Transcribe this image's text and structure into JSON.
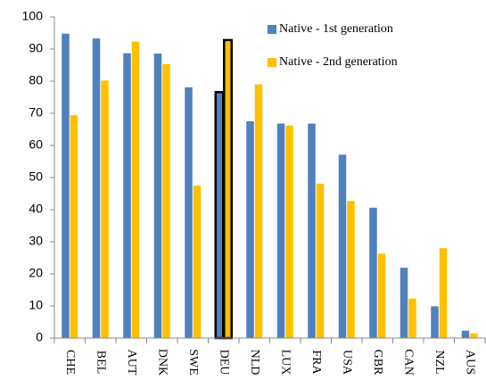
{
  "chart_data": {
    "type": "bar",
    "categories": [
      "CHE",
      "BEL",
      "AUT",
      "DNK",
      "SWE",
      "DEU",
      "NLD",
      "LUX",
      "FRA",
      "USA",
      "GBR",
      "CAN",
      "NZL",
      "AUS"
    ],
    "series": [
      {
        "name": "Native - 1st generation",
        "color": "#4f81bd",
        "values": [
          94.8,
          93.3,
          88.7,
          88.6,
          78.1,
          76.6,
          67.5,
          66.8,
          66.8,
          57.1,
          40.6,
          21.9,
          9.9,
          2.3
        ]
      },
      {
        "name": "Native - 2nd  generation",
        "color": "#ffc000",
        "values": [
          69.4,
          80.2,
          92.3,
          85.3,
          47.5,
          92.8,
          79.0,
          66.2,
          48.1,
          42.7,
          26.3,
          12.3,
          28.0,
          1.5
        ]
      }
    ],
    "highlight_category": "DEU",
    "ylim": [
      0,
      100
    ],
    "yticks": [
      0,
      10,
      20,
      30,
      40,
      50,
      60,
      70,
      80,
      90,
      100
    ],
    "legend": "top-right"
  }
}
